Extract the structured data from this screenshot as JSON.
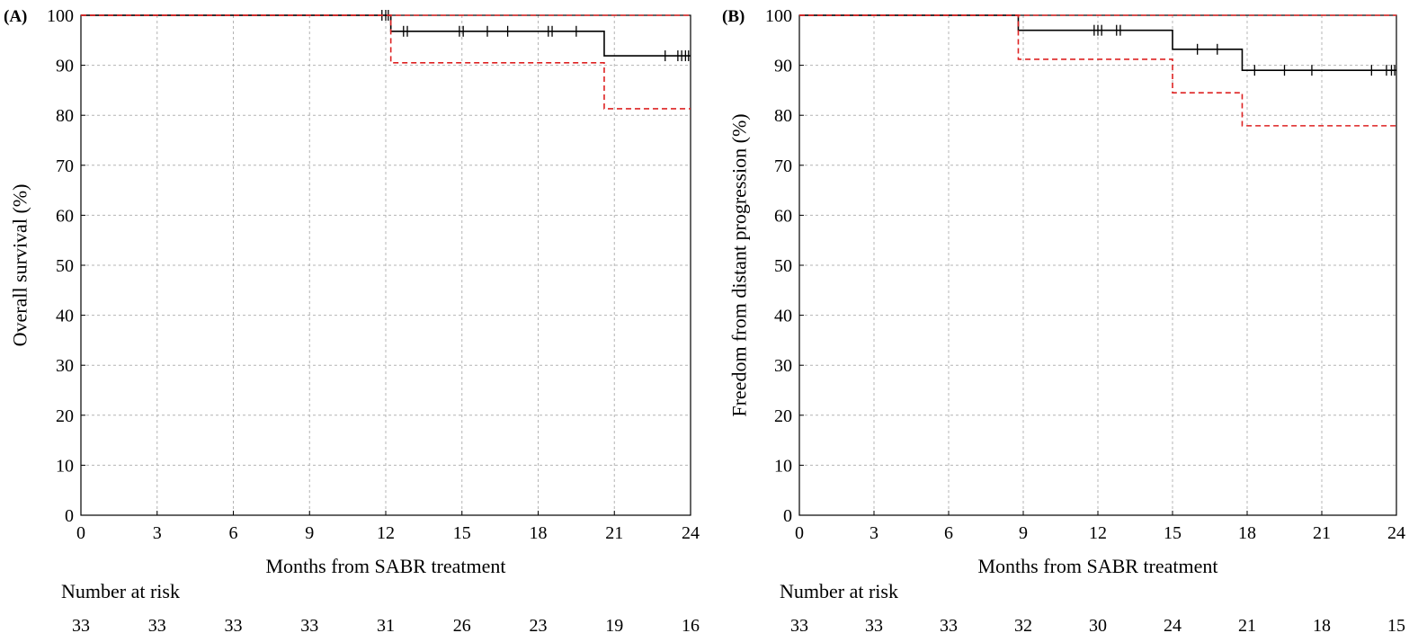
{
  "colors": {
    "km": "#000000",
    "ci": "#dd2222",
    "grid": "#b4b4b4",
    "axis": "#000000"
  },
  "chart_data": [
    {
      "type": "line",
      "panel_label": "(A)",
      "xlabel": "Months from SABR treatment",
      "ylabel": "Overall survival (%)",
      "xlim": [
        0,
        24
      ],
      "ylim": [
        0,
        100
      ],
      "xticks": [
        0,
        3,
        6,
        9,
        12,
        15,
        18,
        21,
        24
      ],
      "yticks": [
        0,
        10,
        20,
        30,
        40,
        50,
        60,
        70,
        80,
        90,
        100
      ],
      "grid": true,
      "series": [
        {
          "style": "solid",
          "role": "estimate",
          "steps": [
            [
              0,
              100
            ],
            [
              12.2,
              96.8
            ],
            [
              20.6,
              91.9
            ],
            [
              24,
              91.9
            ]
          ],
          "censor": [
            11.85,
            12.0,
            12.1,
            12.7,
            12.85,
            14.9,
            15.05,
            16.0,
            16.8,
            18.4,
            18.55,
            19.5,
            23.0,
            23.5,
            23.65,
            23.8,
            23.92
          ]
        },
        {
          "style": "dashed",
          "role": "upper",
          "steps": [
            [
              0,
              100
            ],
            [
              24,
              100
            ]
          ],
          "censor": []
        },
        {
          "style": "dashed",
          "role": "lower",
          "steps": [
            [
              0,
              100
            ],
            [
              12.2,
              90.5
            ],
            [
              20.6,
              81.3
            ],
            [
              24,
              81.3
            ]
          ],
          "censor": []
        }
      ],
      "risk_table": {
        "title": "Number at risk",
        "values": [
          "33",
          "33",
          "33",
          "33",
          "31",
          "26",
          "23",
          "19",
          "16"
        ]
      }
    },
    {
      "type": "line",
      "panel_label": "(B)",
      "xlabel": "Months from SABR treatment",
      "ylabel": "Freedom from distant progression (%)",
      "xlim": [
        0,
        24
      ],
      "ylim": [
        0,
        100
      ],
      "xticks": [
        0,
        3,
        6,
        9,
        12,
        15,
        18,
        21,
        24
      ],
      "yticks": [
        0,
        10,
        20,
        30,
        40,
        50,
        60,
        70,
        80,
        90,
        100
      ],
      "grid": true,
      "series": [
        {
          "style": "solid",
          "role": "estimate",
          "steps": [
            [
              0,
              100
            ],
            [
              8.8,
              97.0
            ],
            [
              15.0,
              93.2
            ],
            [
              17.8,
              89.0
            ],
            [
              24,
              89.0
            ]
          ],
          "censor": [
            11.85,
            12.0,
            12.15,
            12.75,
            12.9,
            16.0,
            16.8,
            18.3,
            19.5,
            20.6,
            23.0,
            23.6,
            23.8,
            23.93
          ]
        },
        {
          "style": "dashed",
          "role": "upper",
          "steps": [
            [
              0,
              100
            ],
            [
              24,
              100
            ]
          ],
          "censor": []
        },
        {
          "style": "dashed",
          "role": "lower",
          "steps": [
            [
              0,
              100
            ],
            [
              8.8,
              91.2
            ],
            [
              15.0,
              84.5
            ],
            [
              17.8,
              77.9
            ],
            [
              24,
              77.9
            ]
          ],
          "censor": []
        }
      ],
      "risk_table": {
        "title": "Number at risk",
        "values": [
          "33",
          "33",
          "33",
          "32",
          "30",
          "24",
          "21",
          "18",
          "15"
        ]
      }
    }
  ]
}
